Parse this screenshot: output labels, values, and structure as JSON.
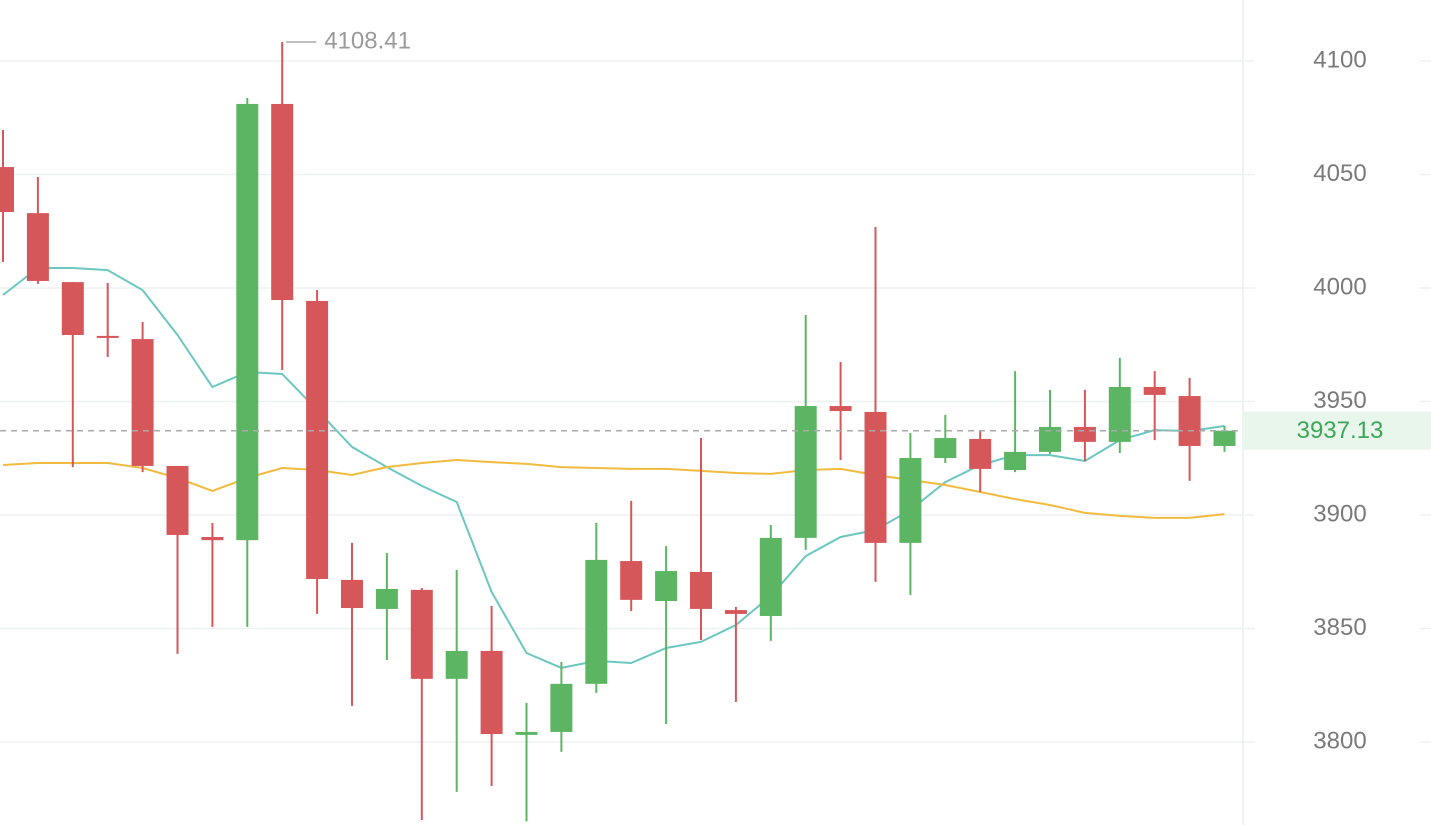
{
  "chart_data": {
    "type": "candlestick",
    "up_color": "#5cb562",
    "down_color": "#d6575a",
    "open": [
      4053.3,
      4033.0,
      4002.6,
      3978.9,
      3977.5,
      3921.6,
      3890.3,
      3888.9,
      4081.1,
      3994.3,
      3871.4,
      3858.6,
      3867.0,
      3827.8,
      3840.1,
      3803.1,
      3804.4,
      3825.6,
      3879.7,
      3862.1,
      3874.9,
      3858.1,
      3855.5,
      3889.9,
      3948.0,
      3945.4,
      3887.7,
      3925.1,
      3933.5,
      3919.8,
      3927.8,
      3938.8,
      3932.2,
      3956.4,
      3952.4,
      3930.4
    ],
    "high": [
      4069.6,
      4048.9,
      4002.6,
      4002.2,
      3985.0,
      3921.6,
      3896.5,
      4083.7,
      4108.41,
      3999.1,
      3887.7,
      3883.3,
      3867.8,
      3875.8,
      3859.9,
      3817.2,
      3835.2,
      3896.5,
      3906.2,
      3886.3,
      3933.9,
      3859.5,
      3895.6,
      3988.1,
      3967.4,
      4026.9,
      3936.1,
      3944.1,
      3937.4,
      3963.4,
      3955.1,
      3955.1,
      3969.2,
      3963.4,
      3960.4,
      3939.2
    ],
    "low": [
      4011.5,
      4001.8,
      3921.1,
      3969.6,
      3918.9,
      3838.8,
      3850.7,
      3850.7,
      3963.9,
      3856.4,
      3815.9,
      3836.1,
      3765.6,
      3778.0,
      3780.6,
      3765.0,
      3795.6,
      3821.6,
      3857.7,
      3807.9,
      3844.9,
      3817.6,
      3844.5,
      3884.6,
      3924.2,
      3870.5,
      3864.8,
      3922.9,
      3910.1,
      3918.9,
      3926.9,
      3923.8,
      3927.3,
      3933.0,
      3915.0,
      3927.8
    ],
    "close": [
      4033.5,
      4003.1,
      3979.3,
      3978.0,
      3921.6,
      3891.2,
      3888.9,
      4081.1,
      3994.7,
      3871.8,
      3859.0,
      3867.4,
      3827.8,
      3840.1,
      3803.5,
      3804.4,
      3825.6,
      3880.2,
      3862.6,
      3875.3,
      3858.6,
      3856.4,
      3889.9,
      3948.0,
      3945.8,
      3887.7,
      3925.1,
      3933.9,
      3920.3,
      3927.8,
      3938.8,
      3932.2,
      3956.4,
      3952.9,
      3930.4,
      3937.13
    ],
    "ma_lines": [
      {
        "color": "#6cc7c0",
        "values": [
          3996.9,
          4008.8,
          4008.8,
          4007.9,
          3999.1,
          3979.3,
          3956.4,
          3963.0,
          3962.1,
          3946.3,
          3930.0,
          3921.1,
          3912.8,
          3905.7,
          3866.1,
          3839.2,
          3832.6,
          3835.7,
          3834.8,
          3841.4,
          3844.1,
          3851.5,
          3864.3,
          3881.9,
          3890.3,
          3893.4,
          3902.2,
          3914.5,
          3922.0,
          3926.4,
          3926.4,
          3923.8,
          3933.0,
          3937.4,
          3937.0,
          3939.2
        ]
      },
      {
        "color": "#f1bb40",
        "values": [
          3922.0,
          3922.9,
          3922.9,
          3922.9,
          3920.7,
          3916.3,
          3910.6,
          3916.3,
          3920.7,
          3919.8,
          3917.6,
          3921.1,
          3922.9,
          3924.2,
          3923.3,
          3922.5,
          3921.1,
          3920.7,
          3920.3,
          3920.3,
          3919.4,
          3918.5,
          3918.1,
          3919.8,
          3920.3,
          3917.6,
          3915.4,
          3913.2,
          3910.1,
          3907.0,
          3904.4,
          3900.9,
          3899.6,
          3898.7,
          3898.7,
          3900.4
        ]
      }
    ],
    "ylim": [
      3763.4,
      4126.9
    ],
    "yticks": [
      3800,
      3850,
      3900,
      3950,
      4000,
      4050,
      4100
    ],
    "grid": true
  }
}
